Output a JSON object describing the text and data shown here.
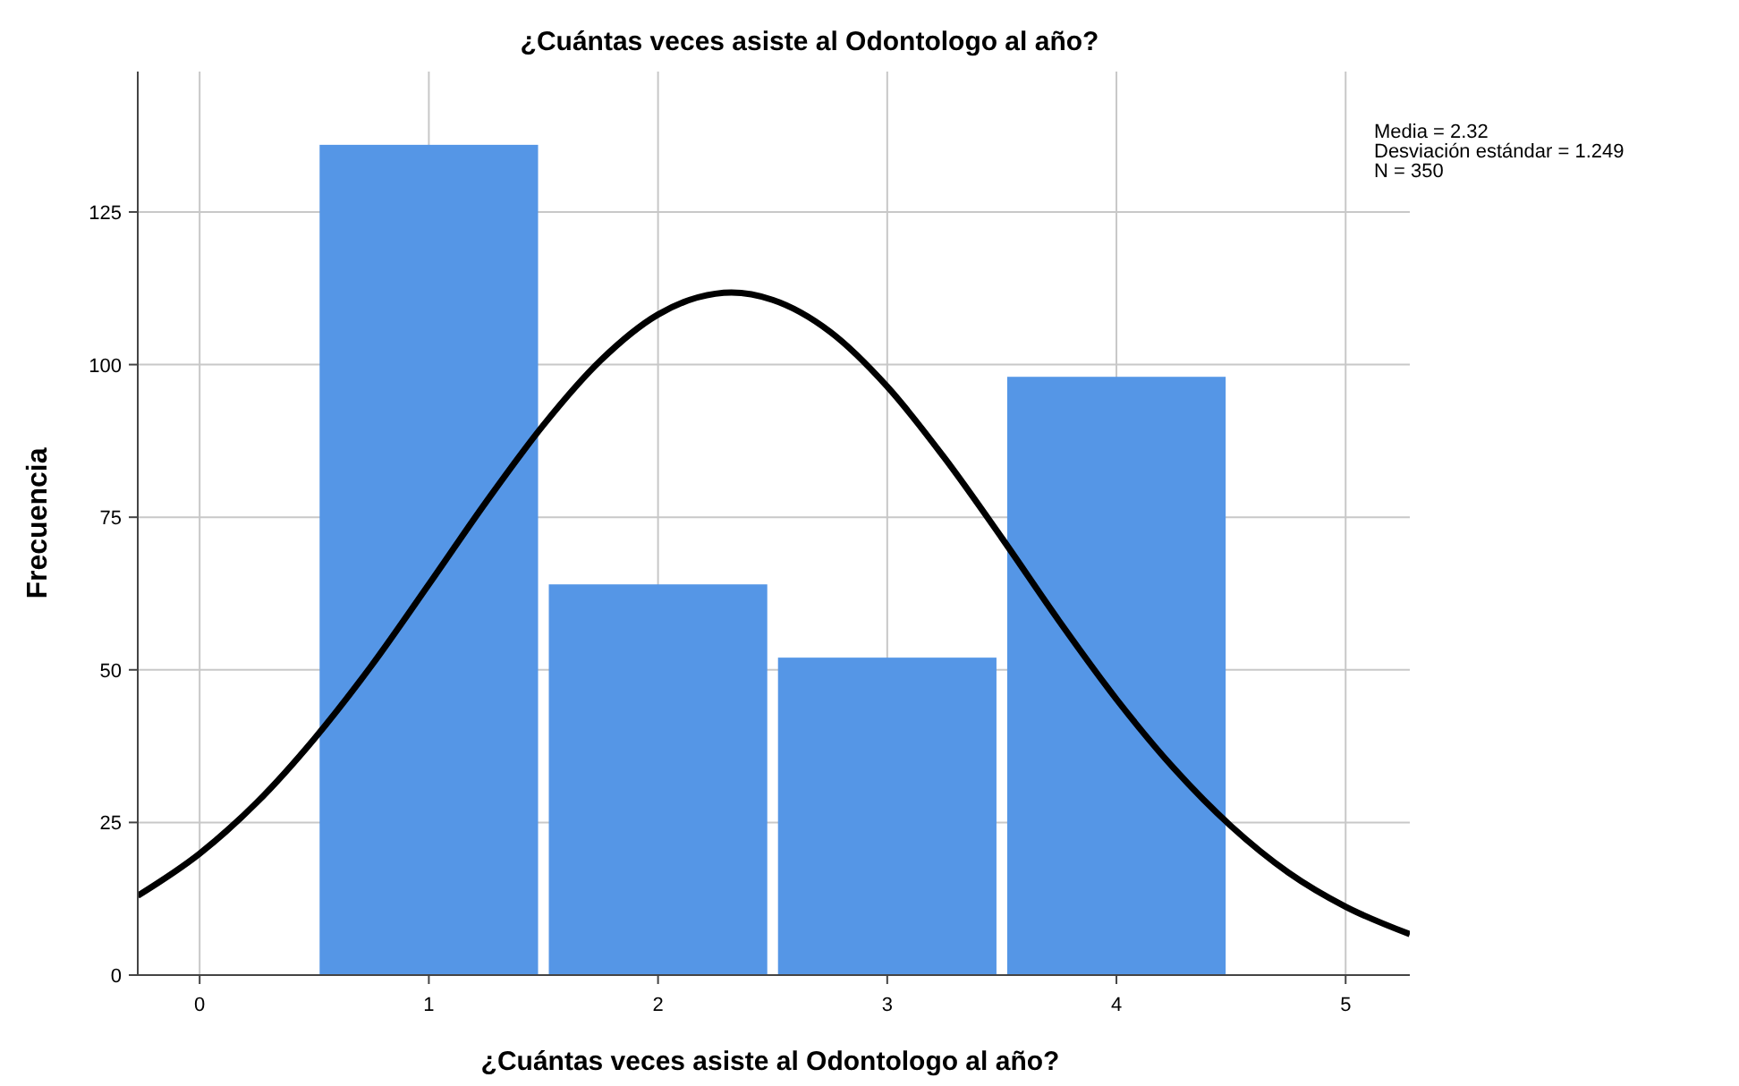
{
  "chart_data": {
    "type": "histogram",
    "title": "¿Cuántas veces asiste al Odontologo al año?",
    "xlabel": "¿Cuántas veces asiste al Odontologo al año?",
    "ylabel": "Frecuencia",
    "bins": [
      0.5,
      1.5,
      2.5,
      3.5,
      4.5
    ],
    "values": [
      136,
      64,
      52,
      98
    ],
    "color": "#5596e6",
    "series": [
      {
        "type": "line",
        "color": "#000000",
        "x": [
          -0.27,
          0,
          0.25,
          0.5,
          0.75,
          1,
          1.25,
          1.5,
          1.75,
          2,
          2.25,
          2.32,
          2.5,
          2.75,
          3,
          3.25,
          3.5,
          3.75,
          4,
          4.25,
          4.5,
          4.75,
          5,
          5.28
        ],
        "values": [
          13,
          19.9,
          28.3,
          38.7,
          50.7,
          64,
          77.5,
          90.1,
          100.7,
          108.2,
          111.6,
          111.8,
          110.6,
          105.4,
          96.4,
          84.7,
          71.6,
          58,
          45.2,
          33.9,
          24.4,
          16.8,
          11.2,
          6.7
        ]
      }
    ],
    "xlim": [
      -0.27,
      5.28
    ],
    "xticks": [
      0,
      1,
      2,
      3,
      4,
      5
    ],
    "ylim": [
      0,
      148
    ],
    "yticks": [
      0,
      25,
      50,
      75,
      100,
      125
    ],
    "grid": true,
    "annotations": [
      "Media = 2.32",
      "Desviación estándar = 1.249",
      "N = 350"
    ]
  }
}
